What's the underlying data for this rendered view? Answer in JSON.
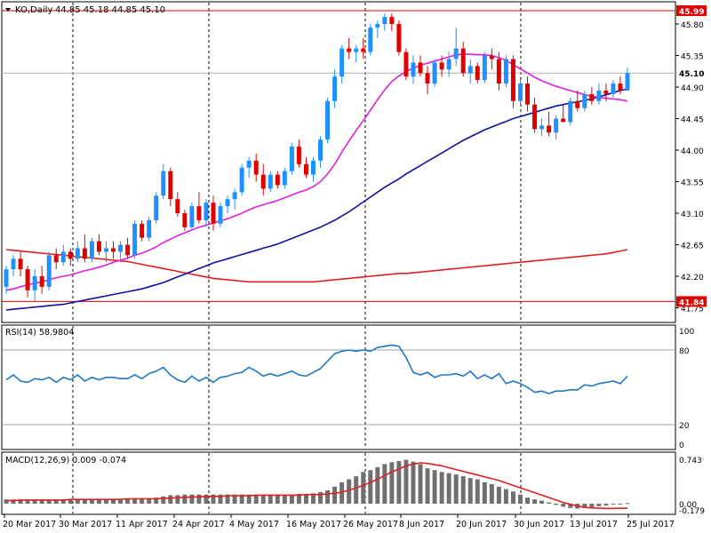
{
  "header": {
    "symbol": "KO,Daily",
    "ohlc": "44.85 45.18 44.85 45.10"
  },
  "rsi": {
    "label": "RSI(14) 58.9804",
    "levels": [
      "100",
      "80",
      "20",
      "0"
    ]
  },
  "macd": {
    "label": "MACD(12,26,9) 0.009 -0.074",
    "levels": [
      "0.743",
      "0.00",
      "-0.179"
    ]
  },
  "price_labels": {
    "ticks": [
      "45.80",
      "45.35",
      "44.90",
      "44.45",
      "44.00",
      "43.55",
      "43.10",
      "42.65",
      "42.20",
      "41.75"
    ],
    "resistance": "45.99",
    "current": "45.10",
    "support": "41.84"
  },
  "date_labels": [
    "20 Mar 2017",
    "30 Mar 2017",
    "11 Apr 2017",
    "24 Apr 2017",
    "4 May 2017",
    "16 May 2017",
    "26 May 2017",
    "8 Jun 2017",
    "20 Jun 2017",
    "30 Jun 2017",
    "13 Jul 2017",
    "25 Jul 2017"
  ],
  "colors": {
    "up": "#1e90ff",
    "down": "#e00000",
    "ma_short": "#e020e0",
    "ma_mid": "#1010a0",
    "ma_long": "#e02020",
    "rsi_line": "#1e78c8",
    "macd_hist": "#707070",
    "macd_signal": "#e02020",
    "hline": "#e00000"
  },
  "chart_data": [
    {
      "type": "candlestick",
      "title": "KO,Daily",
      "ylim": [
        41.75,
        46.0
      ],
      "horizontal_lines": [
        45.99,
        41.84
      ],
      "current_price": 45.1,
      "candles": [
        {
          "o": 42.05,
          "h": 42.35,
          "l": 41.95,
          "c": 42.3
        },
        {
          "o": 42.3,
          "h": 42.5,
          "l": 42.2,
          "c": 42.45
        },
        {
          "o": 42.45,
          "h": 42.55,
          "l": 42.2,
          "c": 42.3
        },
        {
          "o": 42.3,
          "h": 42.35,
          "l": 41.9,
          "c": 42.0
        },
        {
          "o": 42.0,
          "h": 42.3,
          "l": 41.85,
          "c": 42.2
        },
        {
          "o": 42.2,
          "h": 42.35,
          "l": 41.95,
          "c": 42.05
        },
        {
          "o": 42.05,
          "h": 42.55,
          "l": 42.0,
          "c": 42.5
        },
        {
          "o": 42.5,
          "h": 42.6,
          "l": 42.3,
          "c": 42.4
        },
        {
          "o": 42.4,
          "h": 42.65,
          "l": 42.35,
          "c": 42.55
        },
        {
          "o": 42.55,
          "h": 42.6,
          "l": 42.35,
          "c": 42.45
        },
        {
          "o": 42.45,
          "h": 42.7,
          "l": 42.4,
          "c": 42.6
        },
        {
          "o": 42.6,
          "h": 42.8,
          "l": 42.4,
          "c": 42.45
        },
        {
          "o": 42.45,
          "h": 42.75,
          "l": 42.4,
          "c": 42.7
        },
        {
          "o": 42.7,
          "h": 42.8,
          "l": 42.5,
          "c": 42.55
        },
        {
          "o": 42.55,
          "h": 42.7,
          "l": 42.4,
          "c": 42.6
        },
        {
          "o": 42.6,
          "h": 42.7,
          "l": 42.45,
          "c": 42.55
        },
        {
          "o": 42.55,
          "h": 42.7,
          "l": 42.4,
          "c": 42.65
        },
        {
          "o": 42.65,
          "h": 42.75,
          "l": 42.45,
          "c": 42.5
        },
        {
          "o": 42.5,
          "h": 43.0,
          "l": 42.45,
          "c": 42.95
        },
        {
          "o": 42.95,
          "h": 43.0,
          "l": 42.7,
          "c": 42.75
        },
        {
          "o": 42.75,
          "h": 43.05,
          "l": 42.7,
          "c": 43.0
        },
        {
          "o": 43.0,
          "h": 43.4,
          "l": 42.95,
          "c": 43.35
        },
        {
          "o": 43.35,
          "h": 43.8,
          "l": 43.3,
          "c": 43.7
        },
        {
          "o": 43.7,
          "h": 43.75,
          "l": 43.2,
          "c": 43.3
        },
        {
          "o": 43.3,
          "h": 43.4,
          "l": 43.05,
          "c": 43.1
        },
        {
          "o": 43.1,
          "h": 43.15,
          "l": 42.85,
          "c": 42.9
        },
        {
          "o": 42.9,
          "h": 43.25,
          "l": 42.85,
          "c": 43.2
        },
        {
          "o": 43.2,
          "h": 43.4,
          "l": 42.95,
          "c": 43.0
        },
        {
          "o": 43.0,
          "h": 43.3,
          "l": 42.9,
          "c": 43.25
        },
        {
          "o": 43.25,
          "h": 43.35,
          "l": 42.85,
          "c": 42.95
        },
        {
          "o": 42.95,
          "h": 43.25,
          "l": 42.9,
          "c": 43.2
        },
        {
          "o": 43.2,
          "h": 43.35,
          "l": 43.1,
          "c": 43.3
        },
        {
          "o": 43.3,
          "h": 43.45,
          "l": 43.15,
          "c": 43.4
        },
        {
          "o": 43.4,
          "h": 43.8,
          "l": 43.35,
          "c": 43.75
        },
        {
          "o": 43.75,
          "h": 43.9,
          "l": 43.6,
          "c": 43.85
        },
        {
          "o": 43.85,
          "h": 43.95,
          "l": 43.55,
          "c": 43.65
        },
        {
          "o": 43.65,
          "h": 43.8,
          "l": 43.35,
          "c": 43.45
        },
        {
          "o": 43.45,
          "h": 43.7,
          "l": 43.4,
          "c": 43.65
        },
        {
          "o": 43.65,
          "h": 43.7,
          "l": 43.45,
          "c": 43.5
        },
        {
          "o": 43.5,
          "h": 43.75,
          "l": 43.45,
          "c": 43.7
        },
        {
          "o": 43.7,
          "h": 44.1,
          "l": 43.65,
          "c": 44.05
        },
        {
          "o": 44.05,
          "h": 44.15,
          "l": 43.75,
          "c": 43.8
        },
        {
          "o": 43.8,
          "h": 43.9,
          "l": 43.6,
          "c": 43.65
        },
        {
          "o": 43.65,
          "h": 43.9,
          "l": 43.55,
          "c": 43.85
        },
        {
          "o": 43.85,
          "h": 44.2,
          "l": 43.75,
          "c": 44.15
        },
        {
          "o": 44.15,
          "h": 44.75,
          "l": 44.1,
          "c": 44.7
        },
        {
          "o": 44.7,
          "h": 45.15,
          "l": 44.6,
          "c": 45.05
        },
        {
          "o": 45.05,
          "h": 45.5,
          "l": 44.95,
          "c": 45.45
        },
        {
          "o": 45.45,
          "h": 45.6,
          "l": 45.3,
          "c": 45.4
        },
        {
          "o": 45.4,
          "h": 45.5,
          "l": 45.25,
          "c": 45.45
        },
        {
          "o": 45.45,
          "h": 45.6,
          "l": 45.3,
          "c": 45.4
        },
        {
          "o": 45.4,
          "h": 45.8,
          "l": 45.35,
          "c": 45.75
        },
        {
          "o": 45.75,
          "h": 45.85,
          "l": 45.6,
          "c": 45.8
        },
        {
          "o": 45.8,
          "h": 45.95,
          "l": 45.7,
          "c": 45.9
        },
        {
          "o": 45.9,
          "h": 45.95,
          "l": 45.7,
          "c": 45.8
        },
        {
          "o": 45.8,
          "h": 45.85,
          "l": 45.35,
          "c": 45.4
        },
        {
          "o": 45.4,
          "h": 45.45,
          "l": 45.0,
          "c": 45.05
        },
        {
          "o": 45.05,
          "h": 45.35,
          "l": 44.95,
          "c": 45.25
        },
        {
          "o": 45.25,
          "h": 45.35,
          "l": 45.05,
          "c": 45.1
        },
        {
          "o": 45.1,
          "h": 45.2,
          "l": 44.8,
          "c": 44.95
        },
        {
          "o": 44.95,
          "h": 45.3,
          "l": 44.9,
          "c": 45.25
        },
        {
          "o": 45.25,
          "h": 45.35,
          "l": 45.05,
          "c": 45.15
        },
        {
          "o": 45.15,
          "h": 45.4,
          "l": 45.05,
          "c": 45.3
        },
        {
          "o": 45.3,
          "h": 45.75,
          "l": 45.2,
          "c": 45.45
        },
        {
          "o": 45.45,
          "h": 45.55,
          "l": 45.05,
          "c": 45.1
        },
        {
          "o": 45.1,
          "h": 45.3,
          "l": 44.95,
          "c": 45.2
        },
        {
          "o": 45.2,
          "h": 45.25,
          "l": 44.95,
          "c": 45.0
        },
        {
          "o": 45.0,
          "h": 45.4,
          "l": 44.95,
          "c": 45.35
        },
        {
          "o": 45.35,
          "h": 45.45,
          "l": 45.15,
          "c": 45.3
        },
        {
          "o": 45.3,
          "h": 45.4,
          "l": 44.85,
          "c": 44.95
        },
        {
          "o": 44.95,
          "h": 45.35,
          "l": 44.9,
          "c": 45.3
        },
        {
          "o": 45.3,
          "h": 45.35,
          "l": 44.6,
          "c": 44.7
        },
        {
          "o": 44.7,
          "h": 45.0,
          "l": 44.65,
          "c": 44.95
        },
        {
          "o": 44.95,
          "h": 45.05,
          "l": 44.55,
          "c": 44.65
        },
        {
          "o": 44.65,
          "h": 44.75,
          "l": 44.25,
          "c": 44.3
        },
        {
          "o": 44.3,
          "h": 44.45,
          "l": 44.2,
          "c": 44.35
        },
        {
          "o": 44.35,
          "h": 44.55,
          "l": 44.2,
          "c": 44.25
        },
        {
          "o": 44.25,
          "h": 44.5,
          "l": 44.15,
          "c": 44.45
        },
        {
          "o": 44.45,
          "h": 44.65,
          "l": 44.4,
          "c": 44.4
        },
        {
          "o": 44.4,
          "h": 44.75,
          "l": 44.35,
          "c": 44.7
        },
        {
          "o": 44.7,
          "h": 44.85,
          "l": 44.55,
          "c": 44.6
        },
        {
          "o": 44.6,
          "h": 44.85,
          "l": 44.55,
          "c": 44.8
        },
        {
          "o": 44.8,
          "h": 44.9,
          "l": 44.65,
          "c": 44.7
        },
        {
          "o": 44.7,
          "h": 44.95,
          "l": 44.65,
          "c": 44.85
        },
        {
          "o": 44.85,
          "h": 44.95,
          "l": 44.7,
          "c": 44.8
        },
        {
          "o": 44.8,
          "h": 45.0,
          "l": 44.75,
          "c": 44.95
        },
        {
          "o": 44.95,
          "h": 45.05,
          "l": 44.8,
          "c": 44.85
        },
        {
          "o": 44.85,
          "h": 45.18,
          "l": 44.85,
          "c": 45.1
        }
      ],
      "ma_short": [
        42.0,
        42.02,
        42.05,
        42.08,
        42.1,
        42.12,
        42.15,
        42.18,
        42.2,
        42.22,
        42.25,
        42.28,
        42.3,
        42.33,
        42.36,
        42.4,
        42.43,
        42.46,
        42.5,
        42.53,
        42.57,
        42.62,
        42.68,
        42.73,
        42.78,
        42.82,
        42.86,
        42.9,
        42.93,
        42.96,
        42.99,
        43.02,
        43.06,
        43.1,
        43.15,
        43.19,
        43.22,
        43.25,
        43.28,
        43.32,
        43.36,
        43.4,
        43.43,
        43.48,
        43.55,
        43.66,
        43.8,
        43.97,
        44.13,
        44.28,
        44.42,
        44.57,
        44.72,
        44.86,
        44.98,
        45.06,
        45.12,
        45.17,
        45.21,
        45.24,
        45.27,
        45.3,
        45.33,
        45.36,
        45.37,
        45.37,
        45.36,
        45.36,
        45.35,
        45.32,
        45.28,
        45.22,
        45.16,
        45.1,
        45.04,
        44.99,
        44.95,
        44.91,
        44.88,
        44.85,
        44.82,
        44.79,
        44.77,
        44.75,
        44.74,
        44.73,
        44.72,
        44.7
      ],
      "ma_mid": [
        41.72,
        41.73,
        41.74,
        41.75,
        41.76,
        41.77,
        41.78,
        41.79,
        41.8,
        41.82,
        41.84,
        41.86,
        41.88,
        41.9,
        41.92,
        41.94,
        41.96,
        41.98,
        42.0,
        42.02,
        42.05,
        42.08,
        42.11,
        42.15,
        42.19,
        42.23,
        42.27,
        42.31,
        42.35,
        42.39,
        42.42,
        42.45,
        42.48,
        42.51,
        42.54,
        42.57,
        42.6,
        42.63,
        42.66,
        42.7,
        42.74,
        42.78,
        42.82,
        42.86,
        42.9,
        42.95,
        43.0,
        43.06,
        43.12,
        43.19,
        43.26,
        43.33,
        43.4,
        43.47,
        43.53,
        43.59,
        43.66,
        43.72,
        43.78,
        43.84,
        43.9,
        43.96,
        44.02,
        44.08,
        44.14,
        44.19,
        44.24,
        44.29,
        44.33,
        44.37,
        44.41,
        44.45,
        44.48,
        44.51,
        44.54,
        44.57,
        44.6,
        44.63,
        44.65,
        44.67,
        44.69,
        44.71,
        44.73,
        44.76,
        44.79,
        44.82,
        44.85,
        44.87
      ],
      "ma_long": [
        42.58,
        42.57,
        42.56,
        42.55,
        42.54,
        42.53,
        42.52,
        42.51,
        42.5,
        42.49,
        42.48,
        42.47,
        42.46,
        42.45,
        42.44,
        42.43,
        42.42,
        42.41,
        42.39,
        42.37,
        42.35,
        42.33,
        42.31,
        42.29,
        42.27,
        42.25,
        42.23,
        42.21,
        42.19,
        42.17,
        42.16,
        42.15,
        42.14,
        42.13,
        42.12,
        42.12,
        42.12,
        42.12,
        42.12,
        42.12,
        42.12,
        42.12,
        42.12,
        42.12,
        42.13,
        42.14,
        42.15,
        42.16,
        42.17,
        42.18,
        42.19,
        42.2,
        42.21,
        42.22,
        42.23,
        42.24,
        42.24,
        42.25,
        42.26,
        42.27,
        42.28,
        42.29,
        42.3,
        42.31,
        42.32,
        42.33,
        42.34,
        42.35,
        42.36,
        42.37,
        42.38,
        42.39,
        42.4,
        42.41,
        42.42,
        42.43,
        42.44,
        42.45,
        42.46,
        42.47,
        42.48,
        42.49,
        42.5,
        42.51,
        42.52,
        42.54,
        42.56,
        42.58
      ]
    },
    {
      "type": "line",
      "title": "RSI(14) 58.9804",
      "ylim": [
        0,
        100
      ],
      "levels": [
        80,
        20
      ],
      "values": [
        56,
        60,
        55,
        54,
        57,
        56,
        58,
        54,
        58,
        56,
        60,
        55,
        58,
        56,
        58,
        58,
        57,
        57,
        60,
        57,
        61,
        63,
        66,
        60,
        56,
        54,
        59,
        55,
        58,
        54,
        58,
        59,
        61,
        62,
        66,
        63,
        59,
        61,
        59,
        61,
        63,
        60,
        59,
        62,
        65,
        71,
        77,
        79,
        80,
        79,
        80,
        79,
        82,
        83,
        84,
        83,
        74,
        62,
        60,
        62,
        58,
        60,
        60,
        61,
        59,
        63,
        57,
        60,
        57,
        61,
        53,
        55,
        53,
        50,
        46,
        47,
        45,
        47,
        47,
        48,
        48,
        52,
        51,
        53,
        54,
        55,
        53,
        59
      ],
      "last_value": 58.9804
    },
    {
      "type": "bar",
      "title": "MACD(12,26,9) 0.009 -0.074",
      "ylim": [
        -0.179,
        0.743
      ],
      "histogram": [
        0.07,
        0.07,
        0.07,
        0.07,
        0.07,
        0.07,
        0.07,
        0.07,
        0.07,
        0.07,
        0.08,
        0.08,
        0.08,
        0.08,
        0.08,
        0.08,
        0.08,
        0.08,
        0.09,
        0.09,
        0.09,
        0.1,
        0.12,
        0.14,
        0.14,
        0.15,
        0.15,
        0.15,
        0.15,
        0.15,
        0.15,
        0.15,
        0.15,
        0.15,
        0.15,
        0.15,
        0.15,
        0.15,
        0.15,
        0.15,
        0.15,
        0.16,
        0.16,
        0.17,
        0.19,
        0.22,
        0.28,
        0.35,
        0.4,
        0.45,
        0.52,
        0.55,
        0.6,
        0.65,
        0.68,
        0.7,
        0.72,
        0.69,
        0.65,
        0.58,
        0.55,
        0.52,
        0.5,
        0.48,
        0.45,
        0.42,
        0.4,
        0.35,
        0.32,
        0.28,
        0.24,
        0.2,
        0.15,
        0.1,
        0.07,
        0.05,
        0.02,
        -0.02,
        -0.05,
        -0.07,
        -0.08,
        -0.07,
        -0.06,
        -0.04,
        -0.03,
        -0.01,
        0.0,
        0.009
      ],
      "signal": [
        0.05,
        0.05,
        0.06,
        0.06,
        0.06,
        0.06,
        0.06,
        0.06,
        0.06,
        0.07,
        0.07,
        0.07,
        0.07,
        0.07,
        0.07,
        0.07,
        0.07,
        0.08,
        0.08,
        0.08,
        0.08,
        0.08,
        0.09,
        0.09,
        0.1,
        0.1,
        0.11,
        0.11,
        0.12,
        0.12,
        0.12,
        0.13,
        0.13,
        0.13,
        0.13,
        0.14,
        0.14,
        0.14,
        0.14,
        0.14,
        0.14,
        0.14,
        0.15,
        0.15,
        0.15,
        0.16,
        0.17,
        0.19,
        0.22,
        0.26,
        0.3,
        0.35,
        0.4,
        0.46,
        0.52,
        0.57,
        0.62,
        0.65,
        0.67,
        0.66,
        0.64,
        0.62,
        0.59,
        0.56,
        0.53,
        0.5,
        0.47,
        0.44,
        0.41,
        0.38,
        0.34,
        0.3,
        0.26,
        0.22,
        0.18,
        0.14,
        0.1,
        0.06,
        0.02,
        -0.01,
        -0.04,
        -0.06,
        -0.07,
        -0.075,
        -0.078,
        -0.077,
        -0.076,
        -0.074
      ]
    }
  ]
}
